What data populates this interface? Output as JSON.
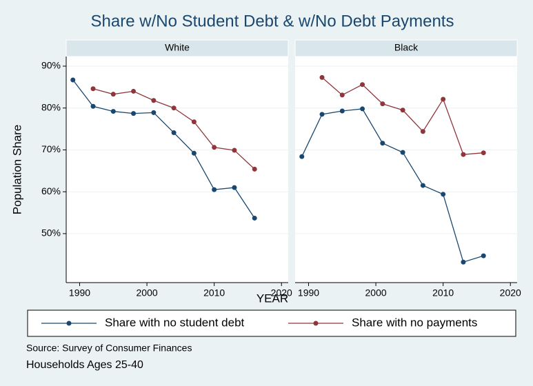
{
  "chart_data": {
    "type": "line",
    "title": "Share w/No Student Debt & w/No Debt Payments",
    "xlabel": "YEAR",
    "ylabel": "Population Share",
    "source": "Source: Survey of Consumer Finances",
    "note": "Households Ages 25-40",
    "x": [
      1989,
      1992,
      1995,
      1998,
      2001,
      2004,
      2007,
      2010,
      2013,
      2016
    ],
    "xlim": [
      1988,
      2021
    ],
    "xticks": [
      1990,
      2000,
      2010,
      2020
    ],
    "ylim": [
      38.3,
      92.3
    ],
    "yticks": [
      {
        "value": 50,
        "label": "50%"
      },
      {
        "value": 60,
        "label": "60%"
      },
      {
        "value": 70,
        "label": "70%"
      },
      {
        "value": 80,
        "label": "80%"
      },
      {
        "value": 90,
        "label": "90%"
      }
    ],
    "grid": true,
    "series": [
      {
        "name": "Share with no student debt",
        "color": "#1a476f"
      },
      {
        "name": "Share with no payments",
        "color": "#90353b"
      }
    ],
    "panels": [
      {
        "title": "White",
        "series": [
          {
            "values": [
              86.7,
              80.4,
              79.2,
              78.7,
              78.9,
              74.1,
              69.2,
              60.5,
              61.0,
              53.7
            ]
          },
          {
            "values": [
              null,
              84.6,
              83.3,
              84.0,
              81.8,
              80.0,
              76.7,
              70.6,
              69.9,
              65.4
            ]
          }
        ]
      },
      {
        "title": "Black",
        "series": [
          {
            "values": [
              68.4,
              78.5,
              79.3,
              79.8,
              71.6,
              69.4,
              61.5,
              59.4,
              43.2,
              44.7
            ]
          },
          {
            "values": [
              null,
              87.3,
              83.1,
              85.6,
              81.0,
              79.5,
              74.4,
              82.1,
              68.9,
              69.3
            ]
          }
        ]
      }
    ]
  }
}
